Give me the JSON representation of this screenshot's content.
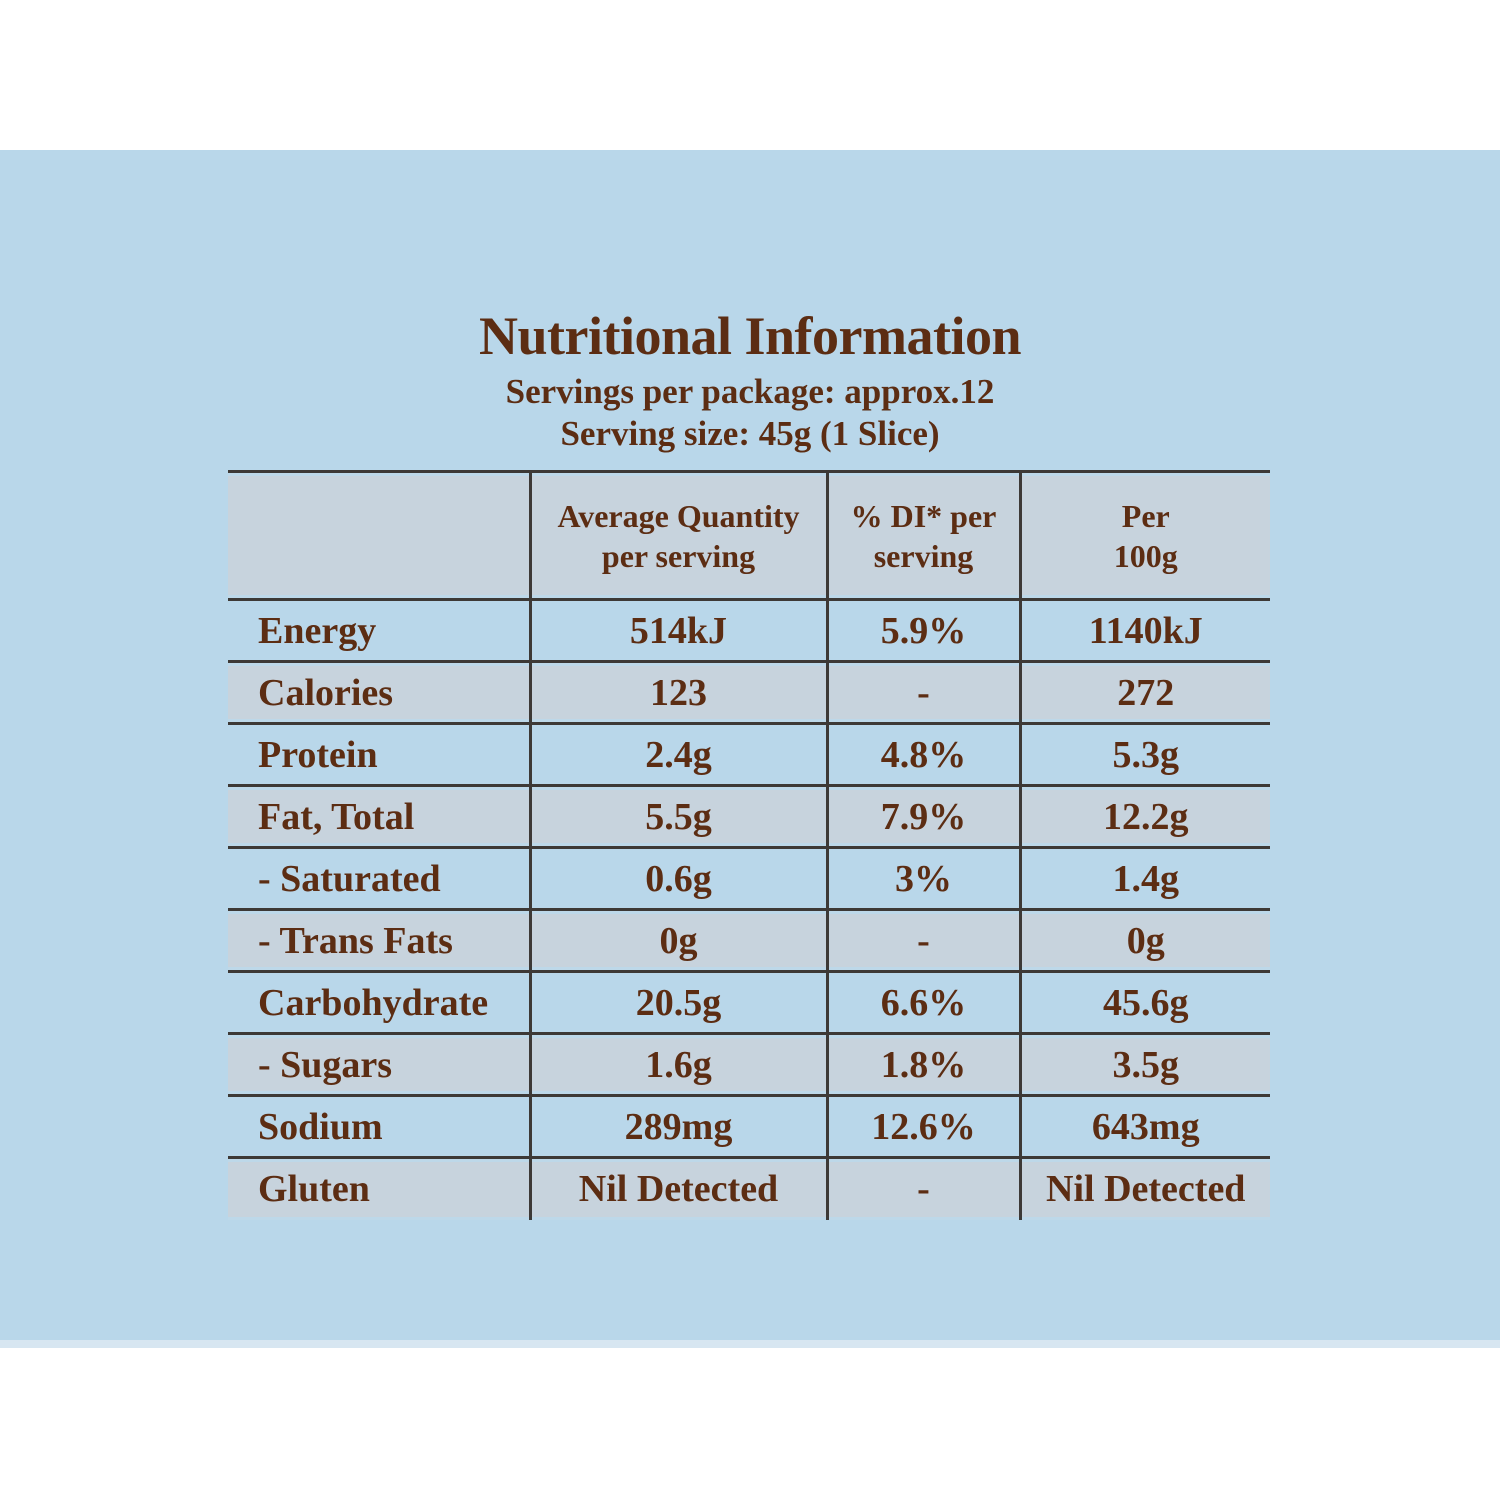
{
  "header": {
    "title": "Nutritional Information",
    "servings_line": "Servings per package: approx.12",
    "serving_size_line": "Serving size: 45g (1 Slice)"
  },
  "table": {
    "headers": {
      "nutrient": "",
      "avg_quantity": "Average Quantity\nper serving",
      "di_per_serving": "% DI* per\nserving",
      "per_100g": "Per\n100g"
    },
    "rows": [
      {
        "label": "Energy",
        "per_serving": "514kJ",
        "di_per_serving": "5.9%",
        "per_100g": "1140kJ"
      },
      {
        "label": "Calories",
        "per_serving": "123",
        "di_per_serving": "-",
        "per_100g": "272"
      },
      {
        "label": "Protein",
        "per_serving": "2.4g",
        "di_per_serving": "4.8%",
        "per_100g": "5.3g"
      },
      {
        "label": "Fat, Total",
        "per_serving": "5.5g",
        "di_per_serving": "7.9%",
        "per_100g": "12.2g"
      },
      {
        "label": "- Saturated",
        "per_serving": "0.6g",
        "di_per_serving": "3%",
        "per_100g": "1.4g"
      },
      {
        "label": "- Trans Fats",
        "per_serving": "0g",
        "di_per_serving": "-",
        "per_100g": "0g"
      },
      {
        "label": "Carbohydrate",
        "per_serving": "20.5g",
        "di_per_serving": "6.6%",
        "per_100g": "45.6g"
      },
      {
        "label": "- Sugars",
        "per_serving": "1.6g",
        "di_per_serving": "1.8%",
        "per_100g": "3.5g"
      },
      {
        "label": "Sodium",
        "per_serving": "289mg",
        "di_per_serving": "12.6%",
        "per_100g": "643mg"
      },
      {
        "label": "Gluten",
        "per_serving": "Nil Detected",
        "di_per_serving": "-",
        "per_100g": "Nil Detected"
      }
    ]
  },
  "colors": {
    "background_blue": "#b9d7ea",
    "shaded_row": "#c7d3dd",
    "text_brown": "#5c2d13",
    "border_dark": "#3d3936"
  }
}
